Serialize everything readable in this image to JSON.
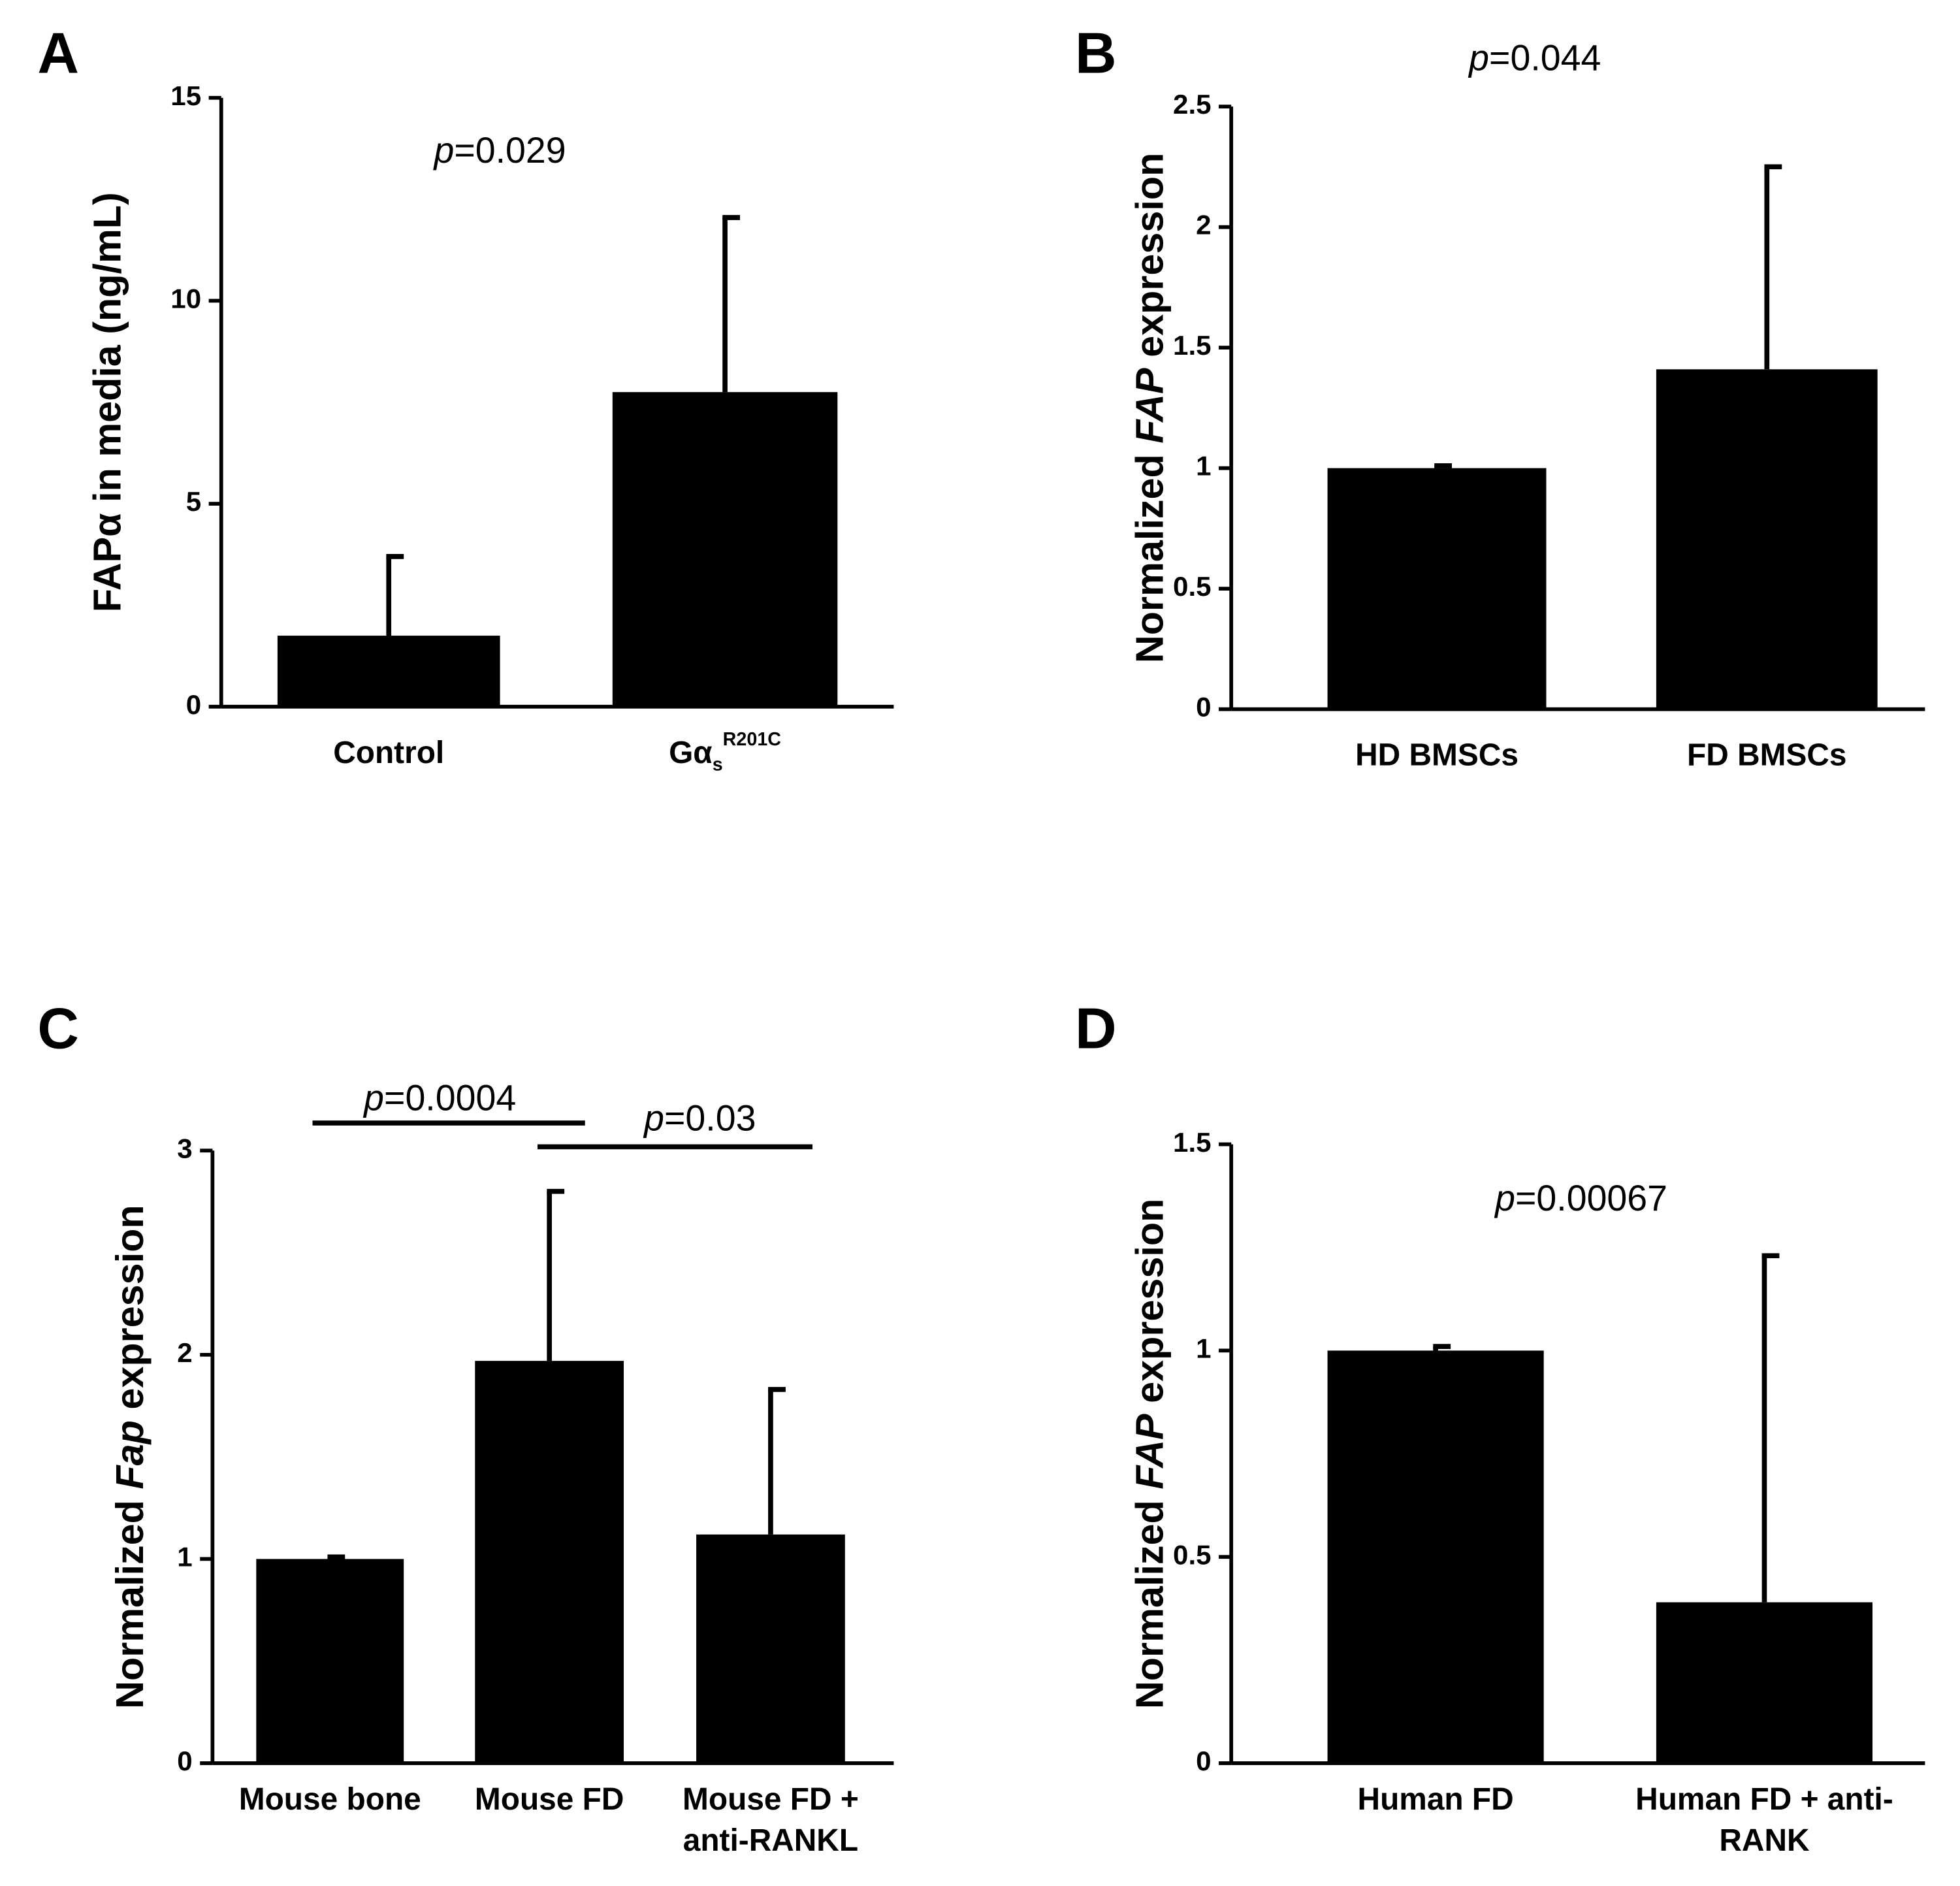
{
  "chart_data": [
    {
      "type": "bar",
      "panel": "A",
      "ylabel": [
        {
          "text": "FAPα in media (ng/mL)"
        }
      ],
      "categories": [
        [
          "Control"
        ],
        [
          "Gα"
        ]
      ],
      "category_subscripts": [
        null,
        "s"
      ],
      "category_superscripts": [
        null,
        "R201C"
      ],
      "values": [
        1.75,
        7.75
      ],
      "errors": [
        1.95,
        4.3
      ],
      "color": "#000000",
      "ylim": [
        0,
        15
      ],
      "yticks": [
        0,
        5,
        10,
        15
      ],
      "annotations": [
        {
          "italic": "p",
          "text": "=0.029"
        }
      ]
    },
    {
      "type": "bar",
      "panel": "B",
      "ylabel": [
        {
          "text": "Normalized "
        },
        {
          "text": "FAP",
          "italic": true
        },
        {
          "text": " expression"
        }
      ],
      "categories": [
        [
          "HD BMSCs"
        ],
        [
          "FD BMSCs"
        ]
      ],
      "values": [
        1.0,
        1.41
      ],
      "errors": [
        0.01,
        0.84
      ],
      "color": "#000000",
      "ylim": [
        0,
        2.5
      ],
      "yticks": [
        0,
        0.5,
        1,
        1.5,
        2,
        2.5
      ],
      "annotations": [
        {
          "italic": "p",
          "text": "=0.044"
        }
      ]
    },
    {
      "type": "bar",
      "panel": "C",
      "ylabel": [
        {
          "text": "Normalized "
        },
        {
          "text": "Fap",
          "italic": true
        },
        {
          "text": " expression"
        }
      ],
      "categories": [
        [
          "Mouse bone"
        ],
        [
          "Mouse FD"
        ],
        [
          "Mouse FD +",
          "anti-RANKL"
        ]
      ],
      "values": [
        1.0,
        1.97,
        1.12
      ],
      "errors": [
        0.01,
        0.83,
        0.71
      ],
      "color": "#000000",
      "ylim": [
        0,
        3
      ],
      "yticks": [
        0,
        1,
        2,
        3
      ],
      "annotations": [
        {
          "italic": "p",
          "text": "=0.0004",
          "between": [
            0,
            1
          ]
        },
        {
          "italic": "p",
          "text": "=0.03",
          "between": [
            1,
            2
          ]
        }
      ]
    },
    {
      "type": "bar",
      "panel": "D",
      "ylabel": [
        {
          "text": "Normalized "
        },
        {
          "text": "FAP",
          "italic": true
        },
        {
          "text": " expression"
        }
      ],
      "categories": [
        [
          "Human FD"
        ],
        [
          "Human FD + anti-",
          "RANK"
        ]
      ],
      "values": [
        1.0,
        0.39
      ],
      "errors": [
        0.01,
        0.84
      ],
      "color": "#000000",
      "ylim": [
        0,
        1.5
      ],
      "yticks": [
        0,
        0.5,
        1,
        1.5
      ],
      "annotations": [
        {
          "italic": "p",
          "text": "=0.00067"
        }
      ]
    }
  ]
}
